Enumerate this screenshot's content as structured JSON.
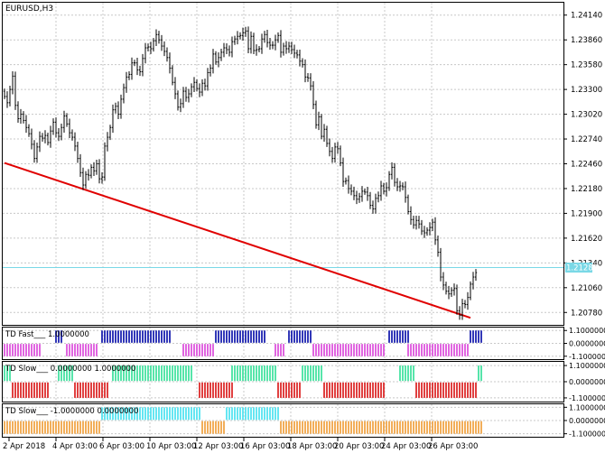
{
  "chart_window": {
    "symbol_label": "EURUSD,H3",
    "current_price_label": "1.21287"
  },
  "main_pane": {
    "y_ticks": [
      "1.24140",
      "1.23860",
      "1.23580",
      "1.23300",
      "1.23020",
      "1.22740",
      "1.22460",
      "1.22180",
      "1.21900",
      "1.21620",
      "1.21340",
      "1.21060",
      "1.20780"
    ],
    "ylim": [
      1.2064,
      1.2428
    ],
    "bid_line_value": 1.21287,
    "trendline": {
      "color": "#e00000",
      "from": {
        "bar": 0,
        "price": 1.2247
      },
      "to": {
        "bar": 172,
        "price": 1.2072
      }
    },
    "bar_color": "#000000"
  },
  "indicators": [
    {
      "label": "TD Fast___ 1.0000000",
      "y_ticks": [
        "1.1000000",
        "0.0000000",
        "-1.1000000"
      ],
      "upper_color": "#1b21b0",
      "lower_color": "#dd55dd",
      "upper_ranges": [
        [
          19,
          21
        ],
        [
          36,
          61
        ],
        [
          78,
          96
        ],
        [
          105,
          113
        ],
        [
          142,
          149
        ],
        [
          172,
          176
        ]
      ],
      "lower_ranges": [
        [
          0,
          13
        ],
        [
          23,
          34
        ],
        [
          66,
          77
        ],
        [
          100,
          103
        ],
        [
          114,
          140
        ],
        [
          149,
          171
        ]
      ]
    },
    {
      "label": "TD Slow___ 0.0000000 1.0000000",
      "y_ticks": [
        "1.1000000",
        "0.0000000",
        "-1.1000000"
      ],
      "upper_color": "#44e2a0",
      "lower_color": "#dd2b2b",
      "upper_ranges": [
        [
          0,
          2
        ],
        [
          20,
          25
        ],
        [
          40,
          69
        ],
        [
          84,
          100
        ],
        [
          110,
          117
        ],
        [
          146,
          151
        ],
        [
          175,
          176
        ]
      ],
      "lower_ranges": [
        [
          3,
          16
        ],
        [
          26,
          38
        ],
        [
          72,
          84
        ],
        [
          101,
          109
        ],
        [
          118,
          140
        ],
        [
          152,
          174
        ]
      ]
    },
    {
      "label": "TD Slow___ -1.0000000 0.0000000",
      "y_ticks": [
        "1.1000000",
        "0.0000000",
        "-1.1000000"
      ],
      "upper_color": "#54e4f0",
      "lower_color": "#f0a548",
      "upper_ranges": [
        [
          36,
          72
        ],
        [
          82,
          101
        ]
      ],
      "lower_ranges": [
        [
          0,
          35
        ],
        [
          73,
          81
        ],
        [
          102,
          176
        ]
      ]
    }
  ],
  "x_axis": {
    "labels": [
      "2 Apr 2018",
      "4 Apr 03:00",
      "6 Apr 03:00",
      "10 Apr 03:00",
      "12 Apr 03:00",
      "16 Apr 03:00",
      "18 Apr 03:00",
      "20 Apr 03:00",
      "24 Apr 03:00",
      "26 Apr 03:00"
    ]
  },
  "colors": {
    "grid": "#c8c8c8",
    "frame": "#000000",
    "bid_line": "#7ad8e6",
    "price_tag_text": "#ffffff"
  },
  "chart_data": {
    "type": "candlestick",
    "title": "EURUSD,H3",
    "series": [
      {
        "name": "EURUSD",
        "close": [
          1.2322,
          1.2315,
          1.233,
          1.2345,
          1.2312,
          1.2297,
          1.2302,
          1.2295,
          1.2287,
          1.228,
          1.2268,
          1.2252,
          1.2265,
          1.2277,
          1.2275,
          1.2278,
          1.227,
          1.2283,
          1.2293,
          1.2281,
          1.2277,
          1.2287,
          1.23,
          1.2291,
          1.2281,
          1.2276,
          1.2266,
          1.2252,
          1.2236,
          1.2222,
          1.2234,
          1.2233,
          1.2242,
          1.2238,
          1.2246,
          1.2229,
          1.2231,
          1.2266,
          1.2276,
          1.2287,
          1.2307,
          1.2311,
          1.2302,
          1.2319,
          1.2332,
          1.2344,
          1.2347,
          1.236,
          1.236,
          1.2352,
          1.235,
          1.2365,
          1.2377,
          1.2378,
          1.2376,
          1.2385,
          1.2392,
          1.2386,
          1.2379,
          1.2373,
          1.2366,
          1.2354,
          1.2338,
          1.2325,
          1.231,
          1.2314,
          1.2328,
          1.2321,
          1.2325,
          1.2333,
          1.2338,
          1.2331,
          1.2327,
          1.2337,
          1.2334,
          1.2349,
          1.2354,
          1.237,
          1.2361,
          1.2366,
          1.2372,
          1.2377,
          1.2375,
          1.2372,
          1.2384,
          1.2387,
          1.239,
          1.2391,
          1.2394,
          1.2396,
          1.2376,
          1.239,
          1.2374,
          1.2375,
          1.2376,
          1.2387,
          1.2392,
          1.2383,
          1.238,
          1.238,
          1.2386,
          1.2391,
          1.2372,
          1.2379,
          1.2376,
          1.2379,
          1.2375,
          1.2371,
          1.2369,
          1.2362,
          1.2358,
          1.2344,
          1.2343,
          1.2334,
          1.2313,
          1.229,
          1.2299,
          1.2277,
          1.2285,
          1.2269,
          1.226,
          1.2252,
          1.2265,
          1.2263,
          1.2247,
          1.2226,
          1.2227,
          1.2218,
          1.2215,
          1.221,
          1.2206,
          1.2209,
          1.2215,
          1.2214,
          1.221,
          1.2199,
          1.2195,
          1.2207,
          1.221,
          1.2221,
          1.2215,
          1.2219,
          1.2234,
          1.2242,
          1.2225,
          1.222,
          1.2221,
          1.222,
          1.2208,
          1.2192,
          1.2183,
          1.2177,
          1.2182,
          1.2178,
          1.217,
          1.2168,
          1.2171,
          1.2174,
          1.218,
          1.216,
          1.2146,
          1.2118,
          1.2109,
          1.2102,
          1.2099,
          1.2103,
          1.2105,
          1.208,
          1.2075,
          1.2088,
          1.2087,
          1.2095,
          1.211,
          1.2118,
          1.2123
        ]
      }
    ],
    "x_tick_labels": [
      "2 Apr 2018",
      "4 Apr 03:00",
      "6 Apr 03:00",
      "10 Apr 03:00",
      "12 Apr 03:00",
      "16 Apr 03:00",
      "18 Apr 03:00",
      "20 Apr 03:00",
      "24 Apr 03:00",
      "26 Apr 03:00"
    ],
    "y_tick_labels": [
      "1.24140",
      "1.23860",
      "1.23580",
      "1.23300",
      "1.23020",
      "1.22740",
      "1.22460",
      "1.22180",
      "1.21900",
      "1.21620",
      "1.21340",
      "1.21060",
      "1.20780"
    ],
    "ylim": [
      1.2064,
      1.2428
    ],
    "grid": true
  }
}
